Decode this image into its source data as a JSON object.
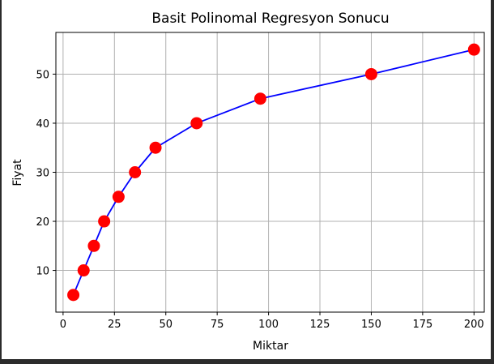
{
  "chart_data": {
    "type": "scatter",
    "title": "Basit Polinomal Regresyon Sonucu",
    "xlabel": "Miktar",
    "ylabel": "Fiyat",
    "xlim": [
      -3.5,
      205
    ],
    "ylim": [
      1.5,
      58.5
    ],
    "xticks": [
      0,
      25,
      50,
      75,
      100,
      125,
      150,
      175,
      200
    ],
    "yticks": [
      10,
      20,
      30,
      40,
      50
    ],
    "grid": true,
    "series": [
      {
        "kind": "scatter",
        "color": "#ff0000",
        "x": [
          5,
          10,
          15,
          20,
          27,
          35,
          45,
          65,
          96,
          150,
          200
        ],
        "y": [
          5,
          10,
          15,
          20,
          25,
          30,
          35,
          40,
          45,
          50,
          55
        ]
      },
      {
        "kind": "line",
        "color": "#0000ff",
        "x": [
          5,
          10,
          15,
          20,
          27,
          35,
          45,
          65,
          96,
          150,
          200
        ],
        "y": [
          5,
          10,
          15,
          20,
          25,
          30,
          35,
          40,
          45,
          50,
          55
        ]
      }
    ]
  }
}
